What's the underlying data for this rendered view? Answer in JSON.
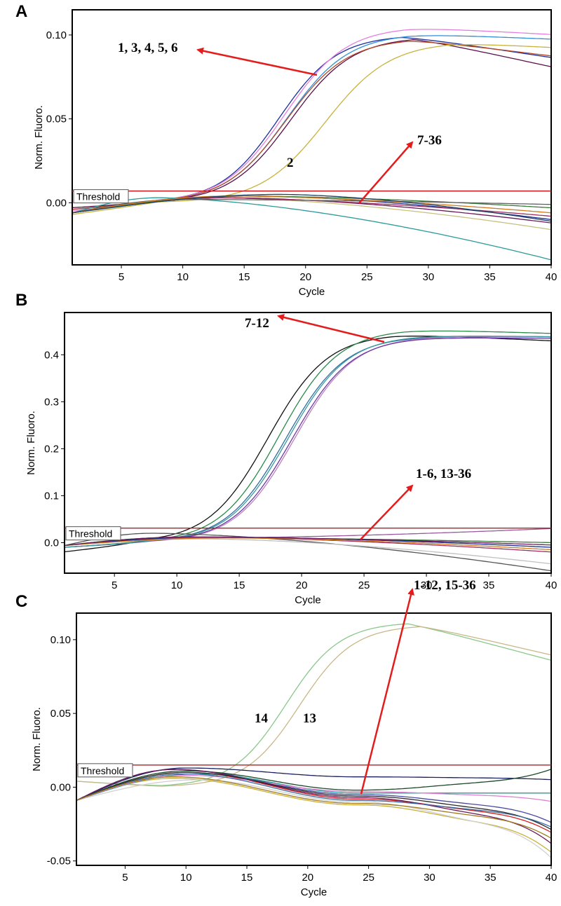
{
  "chart_data": [
    {
      "panel": "A",
      "type": "line",
      "xlabel": "Cycle",
      "ylabel": "Norm. Fluoro.",
      "xlim": [
        1,
        40
      ],
      "ylim": [
        -0.037,
        0.115
      ],
      "x_ticks": [
        5,
        10,
        15,
        20,
        25,
        30,
        35,
        40
      ],
      "y_ticks": [
        0.0,
        0.05,
        0.1
      ],
      "y_tick_labels": [
        "0.00",
        "0.05",
        "0.10"
      ],
      "threshold": {
        "label": "Threshold",
        "value": 0.007
      },
      "annotations": [
        {
          "text": "1, 3, 4, 5, 6",
          "arrow": true
        },
        {
          "text": "7-36",
          "arrow": true
        },
        {
          "text": "2",
          "arrow": false
        }
      ],
      "series": [
        {
          "name": "1",
          "color": "#1c2f9c",
          "shape": "sigmoid",
          "mid": 17.8,
          "k": 0.42,
          "top": 0.1,
          "start": -0.004,
          "decay": 0.0011
        },
        {
          "name": "3",
          "color": "#e47fe0",
          "shape": "sigmoid",
          "mid": 18.3,
          "k": 0.4,
          "top": 0.105,
          "start": -0.005,
          "decay": 0.0004
        },
        {
          "name": "4",
          "color": "#2f8fd8",
          "shape": "sigmoid",
          "mid": 18.5,
          "k": 0.4,
          "top": 0.101,
          "start": -0.006,
          "decay": 0.0003
        },
        {
          "name": "5",
          "color": "#5a0f4a",
          "shape": "sigmoid",
          "mid": 18.8,
          "k": 0.4,
          "top": 0.099,
          "start": -0.003,
          "decay": 0.0016
        },
        {
          "name": "6",
          "color": "#b24a2a",
          "shape": "sigmoid",
          "mid": 18.4,
          "k": 0.4,
          "top": 0.098,
          "start": -0.004,
          "decay": 0.0009
        },
        {
          "name": "2",
          "color": "#c8b23c",
          "shape": "sigmoid",
          "mid": 21.6,
          "k": 0.38,
          "top": 0.096,
          "start": -0.007,
          "decay": 0.0004
        },
        {
          "name": "7-36a",
          "color": "#2a9a9a",
          "shape": "flat",
          "peak": 0.003,
          "peak_x": 8,
          "end": -0.034
        },
        {
          "name": "7-36b",
          "color": "#6a1a5a",
          "shape": "flat",
          "peak": 0.003,
          "peak_x": 14,
          "end": -0.012
        },
        {
          "name": "7-36c",
          "color": "#1a2f8a",
          "shape": "flat",
          "peak": 0.004,
          "peak_x": 16,
          "end": -0.01
        },
        {
          "name": "7-36d",
          "color": "#c8c080",
          "shape": "flat",
          "peak": 0.003,
          "peak_x": 13,
          "end": -0.016
        },
        {
          "name": "7-36e",
          "color": "#3a7a3a",
          "shape": "flat",
          "peak": 0.004,
          "peak_x": 15,
          "end": -0.003
        },
        {
          "name": "7-36f",
          "color": "#a03060",
          "shape": "flat",
          "peak": 0.003,
          "peak_x": 12,
          "end": -0.008
        },
        {
          "name": "7-36g",
          "color": "#606060",
          "shape": "flat",
          "peak": 0.002,
          "peak_x": 10,
          "end": -0.001
        },
        {
          "name": "7-36h",
          "color": "#d07a20",
          "shape": "flat",
          "peak": 0.004,
          "peak_x": 14,
          "end": -0.006
        },
        {
          "name": "7-36i",
          "color": "#204060",
          "shape": "flat",
          "peak": 0.005,
          "peak_x": 18,
          "end": -0.011
        }
      ]
    },
    {
      "panel": "B",
      "type": "line",
      "xlabel": "Cycle",
      "ylabel": "Norm. Fluoro.",
      "xlim": [
        1,
        40
      ],
      "ylim": [
        -0.065,
        0.49
      ],
      "x_ticks": [
        5,
        10,
        15,
        20,
        25,
        30,
        35,
        40
      ],
      "y_ticks": [
        0.0,
        0.1,
        0.2,
        0.3,
        0.4
      ],
      "y_tick_labels": [
        "0.0",
        "0.1",
        "0.2",
        "0.3",
        "0.4"
      ],
      "threshold": {
        "label": "Threshold",
        "value": 0.031
      },
      "annotations": [
        {
          "text": "7-12",
          "arrow": true
        },
        {
          "text": "1-6, 13-36",
          "arrow": true
        }
      ],
      "series": [
        {
          "name": "7",
          "color": "#111111",
          "shape": "sigmoid",
          "mid": 17.3,
          "k": 0.42,
          "top": 0.445,
          "start": -0.02,
          "decay": 0.0012
        },
        {
          "name": "8",
          "color": "#2a8a4a",
          "shape": "sigmoid",
          "mid": 18.2,
          "k": 0.42,
          "top": 0.455,
          "start": -0.01,
          "decay": 0.0008
        },
        {
          "name": "9",
          "color": "#2f6fa0",
          "shape": "sigmoid",
          "mid": 18.7,
          "k": 0.42,
          "top": 0.44,
          "start": -0.01,
          "decay": 0.0002
        },
        {
          "name": "10",
          "color": "#c07fc0",
          "shape": "sigmoid",
          "mid": 19.4,
          "k": 0.42,
          "top": 0.44,
          "start": -0.01,
          "decay": 0.0002
        },
        {
          "name": "11",
          "color": "#6a3aa0",
          "shape": "sigmoid",
          "mid": 19.2,
          "k": 0.42,
          "top": 0.438,
          "start": -0.01,
          "decay": 0.0003
        },
        {
          "name": "12",
          "color": "#3a9aa0",
          "shape": "sigmoid",
          "mid": 18.9,
          "k": 0.42,
          "top": 0.442,
          "start": -0.01,
          "decay": 0.0003
        },
        {
          "name": "1-6, 13-36 a",
          "color": "#555555",
          "shape": "flat",
          "peak": 0.02,
          "peak_x": 8,
          "end": -0.06
        },
        {
          "name": "1-6, 13-36 b",
          "color": "#a03060",
          "shape": "flat",
          "peak": 0.012,
          "peak_x": 11,
          "end": -0.02
        },
        {
          "name": "1-6, 13-36 c",
          "color": "#c0c0c0",
          "shape": "flat",
          "peak": 0.008,
          "peak_x": 12,
          "end": -0.045
        },
        {
          "name": "1-6, 13-36 d",
          "color": "#9a5aa0",
          "shape": "flat",
          "peak": 0.01,
          "peak_x": 12,
          "end": 0.03
        },
        {
          "name": "1-6, 13-36 e",
          "color": "#1a2f8a",
          "shape": "flat",
          "peak": 0.012,
          "peak_x": 13,
          "end": -0.01
        },
        {
          "name": "1-6, 13-36 f",
          "color": "#3a7a3a",
          "shape": "flat",
          "peak": 0.011,
          "peak_x": 10,
          "end": 0.0
        },
        {
          "name": "1-6, 13-36 g",
          "color": "#d07a20",
          "shape": "flat",
          "peak": 0.01,
          "peak_x": 14,
          "end": -0.015
        },
        {
          "name": "1-6, 13-36 h",
          "color": "#6a1a5a",
          "shape": "flat",
          "peak": 0.012,
          "peak_x": 11,
          "end": -0.005
        }
      ]
    },
    {
      "panel": "C",
      "type": "line",
      "xlabel": "Cycle",
      "ylabel": "Norm. Fluoro.",
      "xlim": [
        1,
        40
      ],
      "ylim": [
        -0.053,
        0.118
      ],
      "x_ticks": [
        5,
        10,
        15,
        20,
        25,
        30,
        35,
        40
      ],
      "y_ticks": [
        -0.05,
        0.0,
        0.05,
        0.1
      ],
      "y_tick_labels": [
        "-0.05",
        "0.00",
        "0.05",
        "0.10"
      ],
      "threshold": {
        "label": "Threshold",
        "value": 0.015
      },
      "annotations": [
        {
          "text": "1-12, 15-36",
          "arrow": true
        },
        {
          "text": "14",
          "arrow": false
        },
        {
          "text": "13",
          "arrow": false
        }
      ],
      "series": [
        {
          "name": "14",
          "color": "#8ac88a",
          "shape": "sigmoid",
          "mid": 18.2,
          "k": 0.45,
          "top": 0.112,
          "start": 0.004,
          "decay": 0.0022
        },
        {
          "name": "13",
          "color": "#c8b888",
          "shape": "sigmoid",
          "mid": 19.3,
          "k": 0.45,
          "top": 0.11,
          "start": 0.004,
          "decay": 0.0019
        },
        {
          "name": "1-12, 15-36 a",
          "color": "#1a2060",
          "shape": "wavy",
          "peak": 0.013,
          "peak_x": 10,
          "mid_val": 0.007,
          "end": 0.005
        },
        {
          "name": "1-12, 15-36 b",
          "color": "#d02020",
          "shape": "wavy",
          "peak": 0.01,
          "peak_x": 10,
          "mid_val": -0.008,
          "end": -0.032
        },
        {
          "name": "1-12, 15-36 c",
          "color": "#4a4aa0",
          "shape": "wavy",
          "peak": 0.012,
          "peak_x": 9,
          "mid_val": -0.005,
          "end": -0.025
        },
        {
          "name": "1-12, 15-36 d",
          "color": "#c8b23c",
          "shape": "wavy",
          "peak": 0.006,
          "peak_x": 9,
          "mid_val": -0.012,
          "end": -0.046
        },
        {
          "name": "1-12, 15-36 e",
          "color": "#2a9a9a",
          "shape": "wavy",
          "peak": 0.009,
          "peak_x": 11,
          "mid_val": -0.004,
          "end": -0.004
        },
        {
          "name": "1-12, 15-36 f",
          "color": "#1a4a2a",
          "shape": "wavy",
          "peak": 0.011,
          "peak_x": 10,
          "mid_val": -0.002,
          "end": 0.013
        },
        {
          "name": "1-12, 15-36 g",
          "color": "#e080d0",
          "shape": "wavy",
          "peak": 0.008,
          "peak_x": 10,
          "mid_val": -0.003,
          "end": -0.01
        },
        {
          "name": "1-12, 15-36 h",
          "color": "#6a1a5a",
          "shape": "wavy",
          "peak": 0.012,
          "peak_x": 9,
          "mid_val": -0.007,
          "end": -0.04
        },
        {
          "name": "1-12, 15-36 i",
          "color": "#d0d0d0",
          "shape": "wavy",
          "peak": 0.005,
          "peak_x": 11,
          "mid_val": -0.01,
          "end": -0.05
        },
        {
          "name": "1-12, 15-36 j",
          "color": "#2a2a2a",
          "shape": "wavy",
          "peak": 0.01,
          "peak_x": 10,
          "mid_val": -0.006,
          "end": -0.03
        },
        {
          "name": "1-12, 15-36 k",
          "color": "#3a6aa0",
          "shape": "wavy",
          "peak": 0.009,
          "peak_x": 10,
          "mid_val": -0.009,
          "end": -0.028
        },
        {
          "name": "1-12, 15-36 l",
          "color": "#a07a20",
          "shape": "wavy",
          "peak": 0.007,
          "peak_x": 9,
          "mid_val": -0.011,
          "end": -0.036
        }
      ]
    }
  ]
}
